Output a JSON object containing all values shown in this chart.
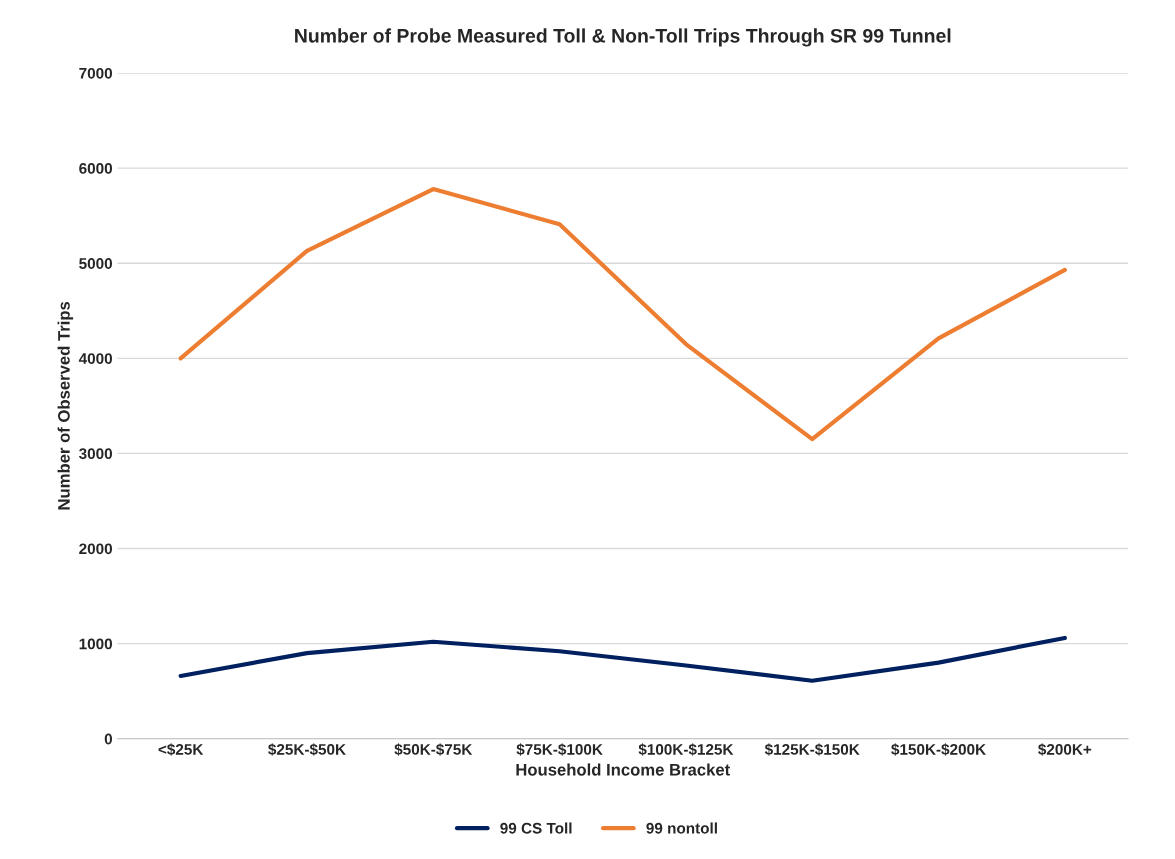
{
  "chart_data": {
    "type": "line",
    "title": "Number of Probe Measured Toll & Non-Toll Trips Through SR 99 Tunnel",
    "xlabel": "Household Income Bracket",
    "ylabel": "Number of Observed Trips",
    "categories": [
      "<$25K",
      "$25K-$50K",
      "$50K-$75K",
      "$75K-$100K",
      "$100K-$125K",
      "$125K-$150K",
      "$150K-$200K",
      "$200K+"
    ],
    "series": [
      {
        "name": "99 CS Toll",
        "color": "#002060",
        "values": [
          660,
          900,
          1020,
          920,
          770,
          610,
          800,
          1060
        ]
      },
      {
        "name": "99 nontoll",
        "color": "#ed7d31",
        "values": [
          4000,
          5130,
          5780,
          5410,
          4150,
          3150,
          4210,
          4930
        ]
      }
    ],
    "ylim": [
      0,
      7000
    ],
    "yticks": [
      0,
      1000,
      2000,
      3000,
      4000,
      5000,
      6000,
      7000
    ],
    "grid": "y",
    "legend": "bottom",
    "marker": "none",
    "line_style": "solid"
  }
}
